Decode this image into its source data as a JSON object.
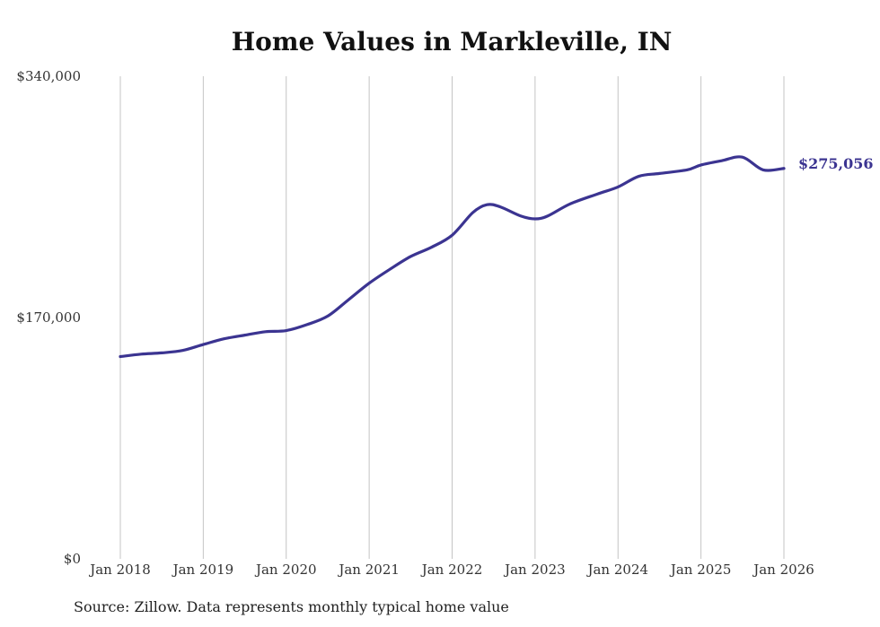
{
  "chart_data": {
    "type": "line",
    "title": "Home Values in Markleville, IN",
    "xlabel": "",
    "ylabel": "",
    "ylim": [
      0,
      340000
    ],
    "yticks": [
      {
        "value": 0,
        "label": "$0"
      },
      {
        "value": 170000,
        "label": "$170,000"
      },
      {
        "value": 340000,
        "label": "$340,000"
      }
    ],
    "xticks": [
      {
        "value": 2018,
        "label": "Jan 2018"
      },
      {
        "value": 2019,
        "label": "Jan 2019"
      },
      {
        "value": 2020,
        "label": "Jan 2020"
      },
      {
        "value": 2021,
        "label": "Jan 2021"
      },
      {
        "value": 2022,
        "label": "Jan 2022"
      },
      {
        "value": 2023,
        "label": "Jan 2023"
      },
      {
        "value": 2024,
        "label": "Jan 2024"
      },
      {
        "value": 2025,
        "label": "Jan 2025"
      },
      {
        "value": 2026,
        "label": "Jan 2026"
      }
    ],
    "grid": "vertical",
    "series": [
      {
        "name": "Typical home value",
        "color": "#3b3491",
        "x": [
          2018.0,
          2018.25,
          2018.5,
          2018.75,
          2019.0,
          2019.25,
          2019.5,
          2019.75,
          2020.0,
          2020.25,
          2020.5,
          2020.75,
          2021.0,
          2021.25,
          2021.5,
          2021.75,
          2022.0,
          2022.25,
          2022.42,
          2022.58,
          2022.83,
          2023.0,
          2023.15,
          2023.42,
          2023.75,
          2024.0,
          2024.25,
          2024.5,
          2024.83,
          2025.0,
          2025.25,
          2025.5,
          2025.75,
          2026.0
        ],
        "values": [
          142500,
          144200,
          145100,
          146800,
          151000,
          155000,
          157600,
          160000,
          160800,
          165000,
          171000,
          182500,
          194200,
          204000,
          213000,
          219500,
          228000,
          244000,
          249500,
          248000,
          241500,
          239500,
          241500,
          250000,
          257000,
          262000,
          269500,
          271500,
          274000,
          277500,
          280500,
          283000,
          274000,
          275056
        ]
      }
    ],
    "end_label": "$275,056"
  },
  "source": "Source: Zillow. Data represents monthly typical home value"
}
